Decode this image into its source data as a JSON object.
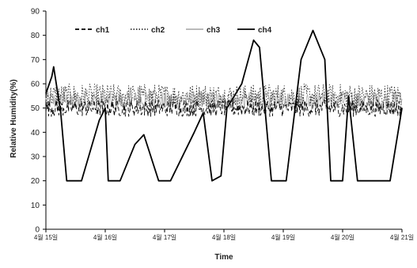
{
  "chart_data": {
    "type": "line",
    "title": "",
    "xlabel": "Time",
    "ylabel": "Relative Humidity(%)",
    "ylim": [
      0,
      90
    ],
    "yticks": [
      0,
      10,
      20,
      30,
      40,
      50,
      60,
      70,
      80,
      90
    ],
    "xlim": [
      0,
      6
    ],
    "xtick_labels": [
      "4월 15일",
      "4월 16일",
      "4월 17일",
      "4월 18일",
      "4월 19일",
      "4월 20일",
      "4월 21일"
    ],
    "legend": {
      "position": "top-center"
    },
    "grid": false,
    "series": [
      {
        "name": "ch1",
        "color": "#000000",
        "dash": "dashed",
        "baseline": 50,
        "noise": 3.5
      },
      {
        "name": "ch2",
        "color": "#333333",
        "dash": "dotted",
        "baseline": 55,
        "noise": 5
      },
      {
        "name": "ch3",
        "color": "#b0b0b0",
        "dash": "solid",
        "baseline": 53,
        "noise": 4
      },
      {
        "name": "ch4",
        "color": "#000000",
        "dash": "solid",
        "x": [
          0,
          0.1,
          0.13,
          0.25,
          0.35,
          0.6,
          0.9,
          1.0,
          1.05,
          1.25,
          1.5,
          1.65,
          1.9,
          1.95,
          2.1,
          2.5,
          2.65,
          2.8,
          2.95,
          3.05,
          3.3,
          3.5,
          3.6,
          3.8,
          4.05,
          4.3,
          4.5,
          4.7,
          4.8,
          5.0,
          5.1,
          5.25,
          5.5,
          5.8,
          6.0
        ],
        "y": [
          56,
          63,
          67,
          48,
          20,
          20,
          45,
          50,
          20,
          20,
          35,
          39,
          20,
          20,
          20,
          40,
          48,
          20,
          22,
          50,
          60,
          78,
          75,
          20,
          20,
          70,
          82,
          70,
          20,
          20,
          55,
          20,
          20,
          20,
          50
        ]
      }
    ]
  }
}
